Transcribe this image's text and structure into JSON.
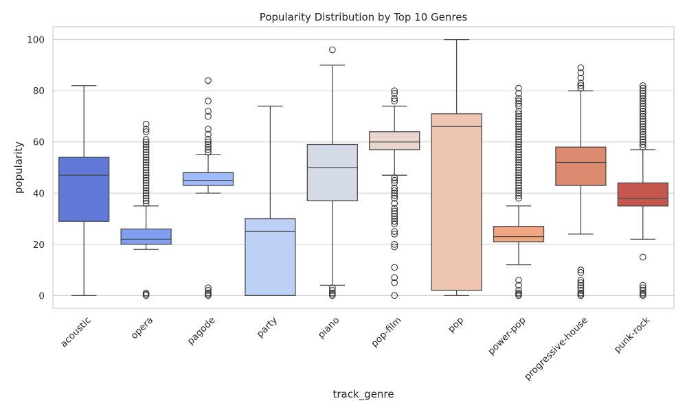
{
  "chart_data": {
    "type": "box",
    "title": "Popularity Distribution by Top 10 Genres",
    "xlabel": "track_genre",
    "ylabel": "popularity",
    "ylim": [
      -5,
      105
    ],
    "yticks": [
      0,
      20,
      40,
      60,
      80,
      100
    ],
    "grid": "horizontal",
    "categories": [
      "acoustic",
      "opera",
      "pagode",
      "party",
      "piano",
      "pop-film",
      "pop",
      "power-pop",
      "progressive-house",
      "punk-rock"
    ],
    "boxes": [
      {
        "category": "acoustic",
        "whislo": 0,
        "q1": 29,
        "med": 47,
        "q3": 54,
        "whishi": 82,
        "fliers": [],
        "color": "#6078d7"
      },
      {
        "category": "opera",
        "whislo": 18,
        "q1": 20,
        "med": 22,
        "q3": 26,
        "whishi": 35,
        "fliers": [
          0,
          0.5,
          1,
          36,
          37,
          38,
          39,
          40,
          41,
          42,
          43,
          44,
          45,
          46,
          47,
          48,
          49,
          50,
          51,
          52,
          53,
          54,
          55,
          56,
          57,
          58,
          59,
          60,
          61,
          64,
          65,
          67
        ],
        "color": "#809ff1"
      },
      {
        "category": "pagode",
        "whislo": 40,
        "q1": 43,
        "med": 45,
        "q3": 48,
        "whishi": 55,
        "fliers": [
          0,
          0.5,
          1,
          2,
          3,
          56,
          57,
          58,
          59,
          60,
          61,
          63,
          65,
          70,
          72,
          76,
          84
        ],
        "color": "#a1bbfb"
      },
      {
        "category": "party",
        "whislo": 0,
        "q1": 0,
        "med": 25,
        "q3": 30,
        "whishi": 74,
        "fliers": [],
        "color": "#bdd0f6"
      },
      {
        "category": "piano",
        "whislo": 4,
        "q1": 37,
        "med": 50,
        "q3": 59,
        "whishi": 90,
        "fliers": [
          0,
          0.5,
          1,
          2,
          3,
          96
        ],
        "color": "#d4dbe6"
      },
      {
        "category": "pop-film",
        "whislo": 47,
        "q1": 57,
        "med": 60,
        "q3": 64,
        "whishi": 74,
        "fliers": [
          0,
          5,
          7,
          11,
          19,
          20,
          24,
          25,
          28,
          29,
          30,
          31,
          32,
          33,
          34,
          36,
          38,
          39,
          40,
          41,
          42,
          44,
          45,
          46,
          76,
          77,
          79,
          80
        ],
        "color": "#e8d6cc"
      },
      {
        "category": "pop",
        "whislo": 0,
        "q1": 2,
        "med": 66,
        "q3": 71,
        "whishi": 100,
        "fliers": [],
        "color": "#edc5b0"
      },
      {
        "category": "power-pop",
        "whislo": 12,
        "q1": 21,
        "med": 23,
        "q3": 27,
        "whishi": 35,
        "fliers": [
          0,
          0.5,
          1,
          2,
          4,
          6,
          38,
          39,
          40,
          41,
          42,
          43,
          44,
          45,
          46,
          47,
          48,
          49,
          50,
          51,
          52,
          53,
          54,
          55,
          56,
          57,
          58,
          59,
          60,
          61,
          62,
          63,
          64,
          65,
          66,
          67,
          68,
          69,
          70,
          71,
          72,
          74,
          75,
          76,
          77,
          79,
          81
        ],
        "color": "#f0a583"
      },
      {
        "category": "progressive-house",
        "whislo": 24,
        "q1": 43,
        "med": 52,
        "q3": 58,
        "whishi": 80,
        "fliers": [
          0,
          0.5,
          1,
          2,
          3,
          4,
          5,
          6,
          9,
          10,
          81,
          82,
          83,
          85,
          87,
          89
        ],
        "color": "#dc8a70"
      },
      {
        "category": "punk-rock",
        "whislo": 22,
        "q1": 35,
        "med": 38,
        "q3": 44,
        "whishi": 57,
        "fliers": [
          0,
          0.5,
          1,
          2,
          3,
          4,
          15,
          58,
          59,
          60,
          61,
          62,
          63,
          64,
          65,
          66,
          67,
          68,
          69,
          70,
          71,
          72,
          73,
          74,
          75,
          76,
          77,
          78,
          79,
          80,
          81,
          82
        ],
        "color": "#c5574e"
      }
    ]
  }
}
